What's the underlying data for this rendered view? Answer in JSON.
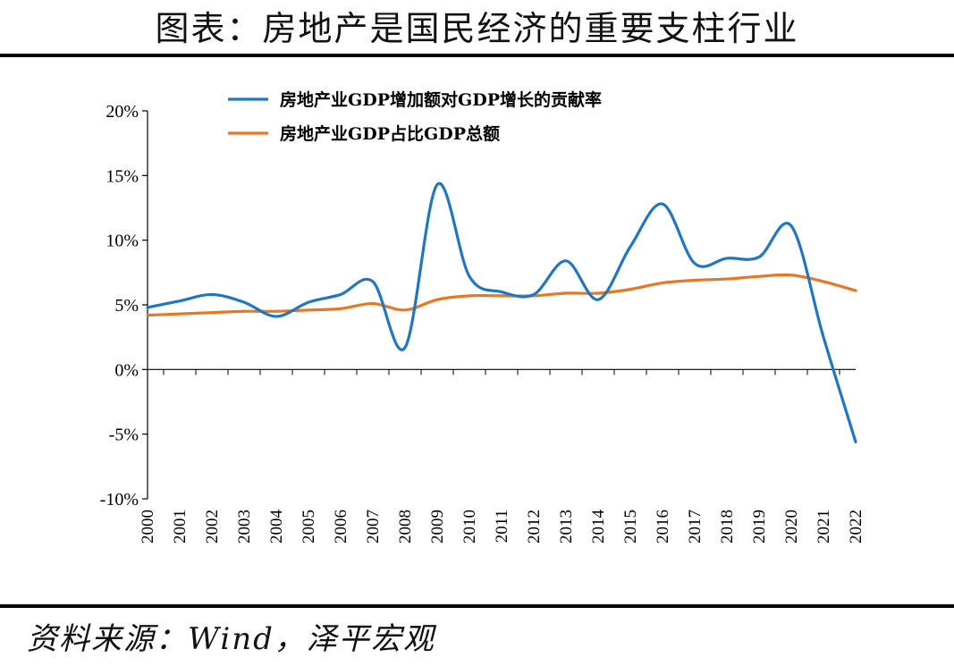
{
  "header": {
    "title": "图表：房地产是国民经济的重要支柱行业"
  },
  "footer": {
    "source": "资料来源：Wind，泽平宏观"
  },
  "colors": {
    "series_blue": "#1f77c4",
    "series_orange": "#e87722",
    "axis": "#000000"
  },
  "chart_data": {
    "type": "line",
    "title": "",
    "xlabel": "",
    "ylabel": "",
    "x": [
      "2000",
      "2001",
      "2002",
      "2003",
      "2004",
      "2005",
      "2006",
      "2007",
      "2008",
      "2009",
      "2010",
      "2011",
      "2012",
      "2013",
      "2014",
      "2015",
      "2016",
      "2017",
      "2018",
      "2019",
      "2020",
      "2021",
      "2022"
    ],
    "ylim": [
      -10,
      20
    ],
    "yticks": [
      -10,
      -5,
      0,
      5,
      10,
      15,
      20
    ],
    "ytick_labels": [
      "-10%",
      "-5%",
      "0%",
      "5%",
      "10%",
      "15%",
      "20%"
    ],
    "legend_position": "top",
    "grid": false,
    "smooth": true,
    "series": [
      {
        "name": "房地产业GDP增加额对GDP增长的贡献率",
        "color": "#1f77c4",
        "values": [
          4.8,
          5.3,
          5.8,
          5.2,
          4.1,
          5.2,
          5.8,
          6.8,
          1.7,
          14.3,
          7.2,
          6.0,
          5.8,
          8.4,
          5.4,
          9.5,
          12.8,
          8.2,
          8.6,
          8.7,
          11.1,
          2.5,
          -5.6
        ]
      },
      {
        "name": "房地产业GDP占比GDP总额",
        "color": "#e87722",
        "values": [
          4.2,
          4.3,
          4.4,
          4.5,
          4.5,
          4.6,
          4.7,
          5.1,
          4.6,
          5.4,
          5.7,
          5.7,
          5.7,
          5.9,
          5.9,
          6.2,
          6.7,
          6.9,
          7.0,
          7.2,
          7.3,
          6.8,
          6.1
        ]
      }
    ]
  }
}
